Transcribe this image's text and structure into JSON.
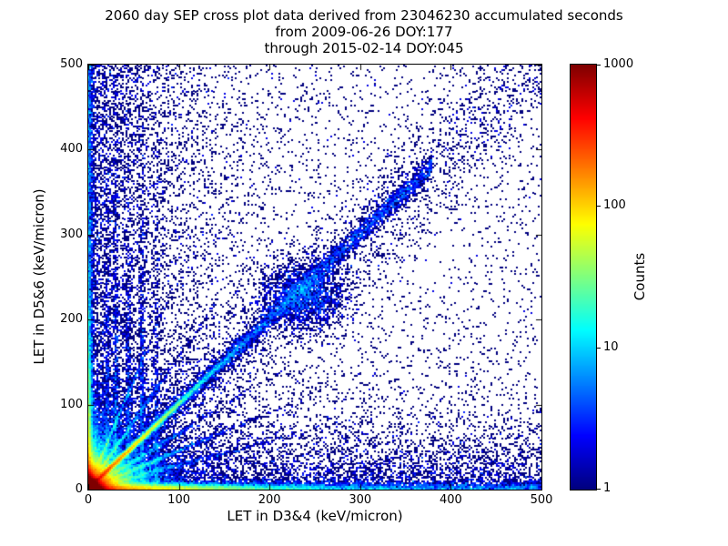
{
  "header": {
    "line1": "2060 day SEP cross plot data derived from 23046230 accumulated seconds",
    "line2": "from 2009-06-26 DOY:177",
    "line3": "through 2015-02-14 DOY:045"
  },
  "chart_data": {
    "type": "heatmap",
    "subtype": "2d-density-cross-plot",
    "title": "2060 day SEP cross plot data derived from 23046230 accumulated seconds",
    "subtitle_from": "from 2009-06-26 DOY:177",
    "subtitle_through": "through 2015-02-14 DOY:045",
    "xlabel": "LET in D3&4 (keV/micron)",
    "ylabel": "LET in D5&6 (keV/micron)",
    "xlim": [
      0,
      500
    ],
    "ylim": [
      0,
      500
    ],
    "xticks": [
      0,
      100,
      200,
      300,
      400,
      500
    ],
    "yticks": [
      0,
      100,
      200,
      300,
      400,
      500
    ],
    "grid": false,
    "colormap": "jet",
    "background": "#ffffff",
    "frame_color": "#000000",
    "min_count_color": "#00007f",
    "max_count_color": "#7f0000",
    "colorbar": {
      "label": "Counts",
      "scale": "log",
      "vmin": 1,
      "vmax": 1000,
      "ticks": [
        1,
        10,
        100,
        1000
      ],
      "position": "right"
    },
    "bins": 250,
    "seed": 20150214,
    "density_features": [
      {
        "kind": "exp2d",
        "n": 200000,
        "sx": 4,
        "sy": 4,
        "note": "intense hotspot at origin (red core)"
      },
      {
        "kind": "exp2d",
        "n": 40000,
        "sx": 11,
        "sy": 11,
        "note": "yellow-green halo around origin"
      },
      {
        "kind": "exp2d",
        "n": 12000,
        "sx": 26,
        "sy": 26,
        "note": "blue outer halo around origin"
      },
      {
        "kind": "diag",
        "n": 20000,
        "scale": 35,
        "slope": 1,
        "width": 2,
        "x0": 0,
        "note": "bright y=x ridge near origin"
      },
      {
        "kind": "diag_uniform",
        "n": 4200,
        "x0": 60,
        "x1": 380,
        "slope": 1,
        "width": 7,
        "note": "y=x ridge continuation"
      },
      {
        "kind": "blob",
        "n": 2200,
        "cx": 240,
        "cy": 228,
        "sx": 24,
        "sy": 20,
        "note": "cluster on diagonal near (240,230)"
      },
      {
        "kind": "hband",
        "n": 15000,
        "scale": 80,
        "yw": 3,
        "note": "horizontal band along y~0"
      },
      {
        "kind": "hband_uniform",
        "n": 2600,
        "yw": 4
      },
      {
        "kind": "vband",
        "n": 8000,
        "scale": 70,
        "xw": 2.5,
        "note": "vertical band along x~0"
      },
      {
        "kind": "vband_uniform",
        "n": 2600,
        "xw": 3
      },
      {
        "kind": "streak",
        "n": 600,
        "x": 22,
        "xw": 1.2,
        "scale": 90
      },
      {
        "kind": "streak",
        "n": 900,
        "x": 31,
        "xw": 1.4,
        "scale": 130
      },
      {
        "kind": "streak",
        "n": 700,
        "x": 45,
        "xw": 1.5,
        "scale": 115
      },
      {
        "kind": "streak",
        "n": 800,
        "x": 60,
        "xw": 1.6,
        "scale": 140
      },
      {
        "kind": "streak",
        "n": 520,
        "x": 76,
        "xw": 1.6,
        "scale": 105
      },
      {
        "kind": "diag",
        "n": 2500,
        "scale": 45,
        "slope": 0.45,
        "width": 1.6,
        "x0": 0,
        "note": "fan line below diagonal"
      },
      {
        "kind": "diag",
        "n": 1500,
        "scale": 55,
        "slope": 0.28,
        "width": 1.6,
        "x0": 0
      },
      {
        "kind": "diag",
        "n": 1600,
        "scale": 40,
        "slope": 0.65,
        "width": 1.6,
        "x0": 0
      },
      {
        "kind": "diag",
        "n": 1600,
        "scale": 28,
        "slope": 1.55,
        "width": 1.8,
        "x0": 0,
        "note": "fan line above diagonal"
      },
      {
        "kind": "diag",
        "n": 1300,
        "scale": 20,
        "slope": 2.5,
        "width": 1.8,
        "x0": 0
      },
      {
        "kind": "uniform",
        "n": 3200,
        "note": "sparse background scatter"
      },
      {
        "kind": "left_exp",
        "n": 6500,
        "scale": 60,
        "note": "dense scatter near left edge all heights"
      },
      {
        "kind": "bottom_exp",
        "n": 5200,
        "scale": 35,
        "note": "scatter just above bottom band"
      },
      {
        "kind": "diag_uniform",
        "n": 2400,
        "x0": 0,
        "x1": 500,
        "slope": 1,
        "width": 38,
        "note": "broad diffuse diagonal scatter"
      }
    ]
  }
}
